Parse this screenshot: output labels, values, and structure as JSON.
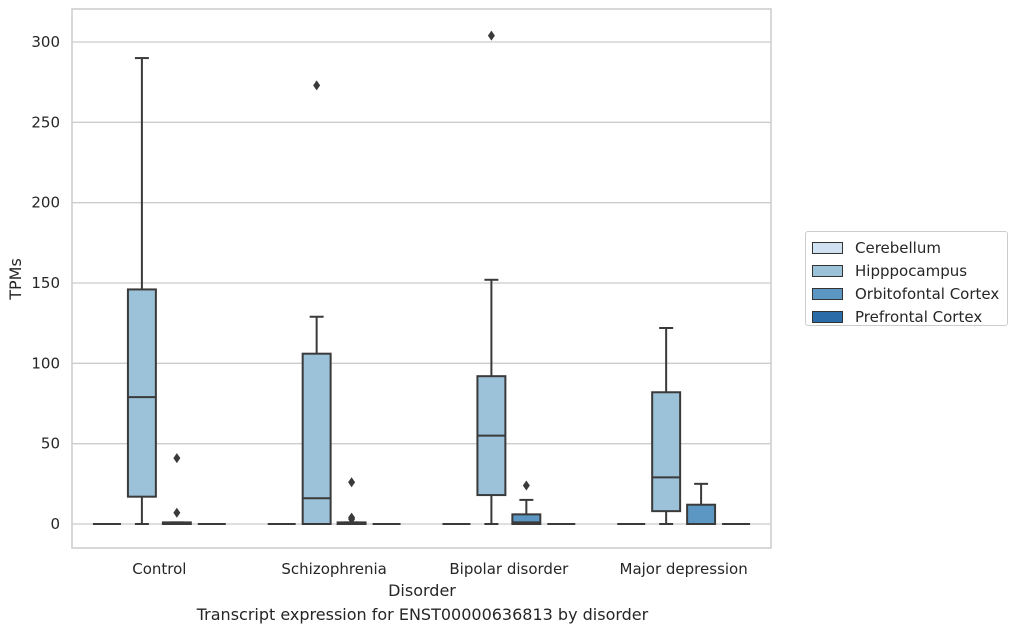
{
  "chart_data": {
    "type": "box",
    "title": "",
    "caption": "Transcript expression for ENST00000636813 by disorder",
    "xlabel": "Disorder",
    "ylabel": "TPMs",
    "ylim": [
      -15,
      320
    ],
    "yticks": [
      0,
      50,
      100,
      150,
      200,
      250,
      300
    ],
    "grid": "horizontal",
    "legend_position": "right",
    "categories": [
      "Control",
      "Schizophrenia",
      "Bipolar disorder",
      "Major depression"
    ],
    "series": [
      {
        "name": "Cerebellum",
        "color": "#d0e1f2",
        "boxes": [
          {
            "min": 0,
            "q1": 0,
            "median": 0,
            "q3": 0,
            "max": 0,
            "outliers": []
          },
          {
            "min": 0,
            "q1": 0,
            "median": 0,
            "q3": 0,
            "max": 0,
            "outliers": []
          },
          {
            "min": 0,
            "q1": 0,
            "median": 0,
            "q3": 0,
            "max": 0,
            "outliers": []
          },
          {
            "min": 0,
            "q1": 0,
            "median": 0,
            "q3": 0,
            "max": 0,
            "outliers": []
          }
        ]
      },
      {
        "name": "Hipppocampus",
        "color": "#9cc2d9",
        "boxes": [
          {
            "min": 0,
            "q1": 17,
            "median": 79,
            "q3": 146,
            "max": 290,
            "outliers": []
          },
          {
            "min": 0,
            "q1": 0,
            "median": 16,
            "q3": 106,
            "max": 129,
            "outliers": [
              273
            ]
          },
          {
            "min": 0,
            "q1": 18,
            "median": 55,
            "q3": 92,
            "max": 152,
            "outliers": [
              304
            ]
          },
          {
            "min": 0,
            "q1": 8,
            "median": 29,
            "q3": 82,
            "max": 122,
            "outliers": []
          }
        ]
      },
      {
        "name": "Orbitofontal Cortex",
        "color": "#5b97c2",
        "boxes": [
          {
            "min": 0,
            "q1": 0,
            "median": 0,
            "q3": 1,
            "max": 1,
            "outliers": [
              41,
              7
            ]
          },
          {
            "min": 0,
            "q1": 0,
            "median": 0,
            "q3": 1,
            "max": 1,
            "outliers": [
              26,
              4,
              3
            ]
          },
          {
            "min": 0,
            "q1": 0,
            "median": 1,
            "q3": 6,
            "max": 15,
            "outliers": [
              24
            ]
          },
          {
            "min": 0,
            "q1": 0,
            "median": 0,
            "q3": 12,
            "max": 25,
            "outliers": []
          }
        ]
      },
      {
        "name": "Prefrontal Cortex",
        "color": "#2b6ca8",
        "boxes": [
          {
            "min": 0,
            "q1": 0,
            "median": 0,
            "q3": 0,
            "max": 0,
            "outliers": []
          },
          {
            "min": 0,
            "q1": 0,
            "median": 0,
            "q3": 0,
            "max": 0,
            "outliers": []
          },
          {
            "min": 0,
            "q1": 0,
            "median": 0,
            "q3": 0,
            "max": 0,
            "outliers": []
          },
          {
            "min": 0,
            "q1": 0,
            "median": 0,
            "q3": 0,
            "max": 0,
            "outliers": []
          }
        ]
      }
    ]
  }
}
